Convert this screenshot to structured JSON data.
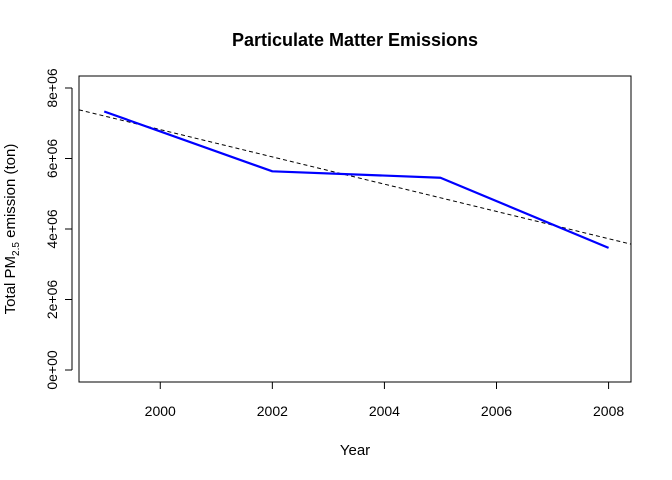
{
  "chart_data": {
    "type": "line",
    "title": "Particulate Matter Emissions",
    "xlabel": "Year",
    "ylabel": {
      "prefix": "Total PM",
      "subscript": "2.5",
      "suffix": " emission (ton)"
    },
    "x": [
      1999,
      2002,
      2005,
      2008
    ],
    "series": [
      {
        "values": [
          7332967,
          5635780,
          5454703,
          3464206
        ],
        "color": "#0000ff",
        "style": "solid"
      }
    ],
    "trendline": {
      "style": "dashed",
      "color": "#000000",
      "x": [
        1998.55,
        2008.4
      ],
      "values": [
        7380000,
        3570000
      ]
    },
    "xlim": [
      1998.55,
      2008.4
    ],
    "ylim": [
      -340000,
      8340000
    ],
    "xticks": [
      2000,
      2002,
      2004,
      2006,
      2008
    ],
    "xtick_labels": [
      "2000",
      "2002",
      "2004",
      "2006",
      "2008"
    ],
    "yticks": [
      0,
      2000000,
      4000000,
      6000000,
      8000000
    ],
    "ytick_labels": [
      "0e+00",
      "2e+06",
      "4e+06",
      "6e+06",
      "8e+06"
    ],
    "grid": false,
    "legend": "none"
  }
}
